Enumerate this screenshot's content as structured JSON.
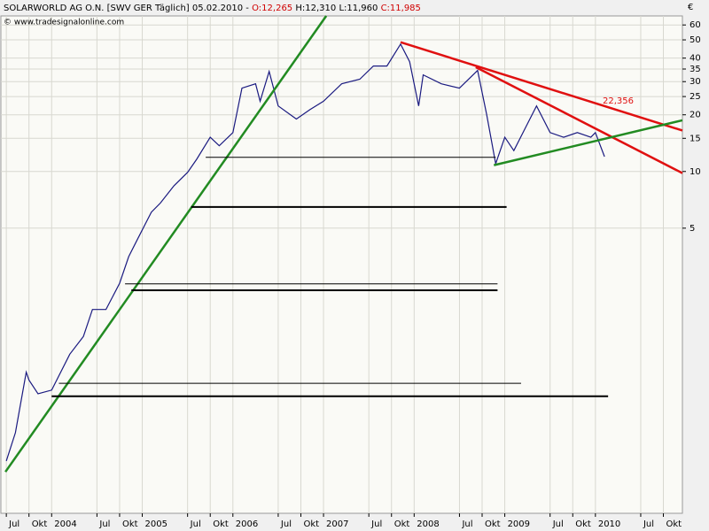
{
  "chart_data": {
    "type": "line",
    "header": {
      "title": "SOLARWORLD AG O.N. [SWV GER  Täglich] 05.02.2010 -",
      "open": "O:12,265",
      "high": "H:12,310",
      "low": "L:11,960",
      "close": "C:11,985"
    },
    "source": "© www.tradesignalonline.com",
    "y_label": "€",
    "annotation": "22,356",
    "log_scale": true,
    "grid": true,
    "xlim": [
      2003.44,
      2010.96
    ],
    "ylim": [
      0.153,
      67
    ],
    "yticks": [
      60,
      50,
      40,
      35,
      30,
      25,
      20,
      15,
      10,
      5
    ],
    "xticks": [
      {
        "value": 2003.5,
        "label": "Jul"
      },
      {
        "value": 2003.75,
        "label": "Okt"
      },
      2004,
      {
        "value": 2004.5,
        "label": "Jul"
      },
      {
        "value": 2004.75,
        "label": "Okt"
      },
      2005,
      {
        "value": 2005.5,
        "label": "Jul"
      },
      {
        "value": 2005.75,
        "label": "Okt"
      },
      2006,
      {
        "value": 2006.5,
        "label": "Jul"
      },
      {
        "value": 2006.75,
        "label": "Okt"
      },
      2007,
      {
        "value": 2007.5,
        "label": "Jul"
      },
      {
        "value": 2007.75,
        "label": "Okt"
      },
      2008,
      {
        "value": 2008.5,
        "label": "Jul"
      },
      {
        "value": 2008.75,
        "label": "Okt"
      },
      2009,
      {
        "value": 2009.5,
        "label": "Jul"
      },
      {
        "value": 2009.75,
        "label": "Okt"
      },
      2010,
      {
        "value": 2010.5,
        "label": "Jul"
      },
      {
        "value": 2010.75,
        "label": "Okt"
      }
    ],
    "series": [
      {
        "color": "#1a1a80",
        "x": [
          2003.5,
          2003.6,
          2003.72,
          2003.75,
          2003.85,
          2004.0,
          2004.2,
          2004.35,
          2004.45,
          2004.6,
          2004.75,
          2004.85,
          2004.95,
          2005.1,
          2005.2,
          2005.35,
          2005.5,
          2005.6,
          2005.75,
          2005.85,
          2006.0,
          2006.1,
          2006.25,
          2006.3,
          2006.4,
          2006.5,
          2006.7,
          2006.85,
          2007.0,
          2007.2,
          2007.4,
          2007.55,
          2007.7,
          2007.85,
          2007.95,
          2008.05,
          2008.1,
          2008.3,
          2008.5,
          2008.7,
          2008.8,
          2008.9,
          2009.0,
          2009.1,
          2009.25,
          2009.35,
          2009.5,
          2009.65,
          2009.8,
          2009.95,
          2010.0,
          2010.1
        ],
        "values": [
          0.29,
          0.41,
          0.86,
          0.78,
          0.66,
          0.69,
          1.07,
          1.33,
          1.85,
          1.85,
          2.55,
          3.53,
          4.39,
          6.08,
          6.8,
          8.4,
          9.9,
          11.6,
          15.2,
          13.7,
          16.1,
          27.7,
          29.2,
          23.6,
          34,
          22.3,
          19,
          21.3,
          23.6,
          29.2,
          30.9,
          36.3,
          36.3,
          47.5,
          38.3,
          22.3,
          32.6,
          29.2,
          27.7,
          34.4,
          20.1,
          11.0,
          15.2,
          12.9,
          17.9,
          22.3,
          16.1,
          15.2,
          16.1,
          15.2,
          16.1,
          11.985
        ]
      }
    ],
    "trendlines": [
      {
        "color": "#228b22",
        "width": 2.5,
        "x": [
          2003.49,
          2007.03
        ],
        "y": [
          0.254,
          67
        ]
      },
      {
        "color": "#e01010",
        "width": 2.5,
        "x": [
          2007.85,
          2010.96
        ],
        "y": [
          48.6,
          16.5
        ]
      },
      {
        "color": "#e01010",
        "width": 2.5,
        "x": [
          2008.68,
          2010.96
        ],
        "y": [
          35.8,
          9.8
        ]
      },
      {
        "color": "#228b22",
        "width": 2.5,
        "x": [
          2008.88,
          2010.96
        ],
        "y": [
          10.8,
          18.7
        ]
      },
      {
        "color": "#000000",
        "width": 1,
        "x": [
          2005.7,
          2008.9
        ],
        "y": [
          11.9,
          11.9
        ]
      },
      {
        "color": "#000000",
        "width": 2,
        "x": [
          2005.54,
          2009.02
        ],
        "y": [
          6.48,
          6.48
        ]
      },
      {
        "color": "#000000",
        "width": 1,
        "x": [
          2004.81,
          2008.92
        ],
        "y": [
          2.53,
          2.53
        ]
      },
      {
        "color": "#000000",
        "width": 2,
        "x": [
          2004.88,
          2008.92
        ],
        "y": [
          2.34,
          2.34
        ]
      },
      {
        "color": "#000000",
        "width": 1,
        "x": [
          2004.08,
          2009.18
        ],
        "y": [
          0.75,
          0.75
        ]
      },
      {
        "color": "#000000",
        "width": 2,
        "x": [
          2004.0,
          2010.14
        ],
        "y": [
          0.64,
          0.64
        ]
      }
    ]
  }
}
